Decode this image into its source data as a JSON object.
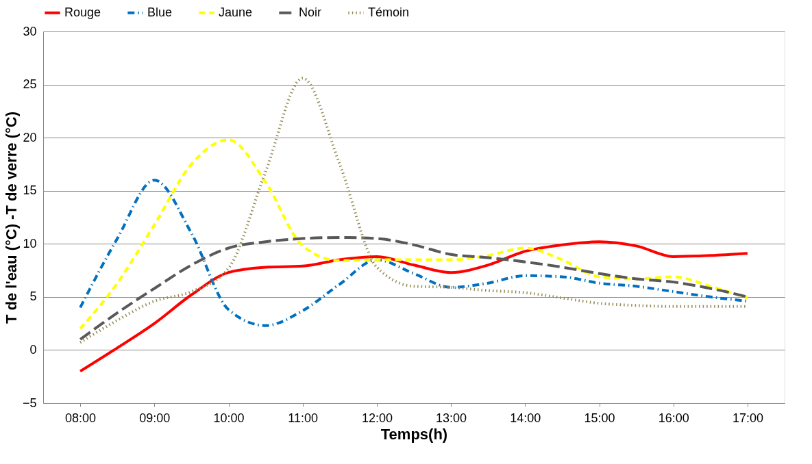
{
  "chart_data": {
    "type": "line",
    "xlabel": "Temps(h)",
    "ylabel": "T de l'eau (°C) -T de verre (°C)",
    "x": [
      8,
      8.5,
      9,
      9.5,
      10,
      10.5,
      11,
      11.5,
      12,
      12.5,
      13,
      13.5,
      14,
      14.5,
      15,
      15.5,
      16,
      16.5,
      17
    ],
    "xlim": [
      7.5,
      17.5
    ],
    "xticks": [
      {
        "value": 8,
        "label": "08:00"
      },
      {
        "value": 9,
        "label": "09:00"
      },
      {
        "value": 10,
        "label": "10:00"
      },
      {
        "value": 11,
        "label": "11:00"
      },
      {
        "value": 12,
        "label": "12:00"
      },
      {
        "value": 13,
        "label": "13:00"
      },
      {
        "value": 14,
        "label": "14:00"
      },
      {
        "value": 15,
        "label": "15:00"
      },
      {
        "value": 16,
        "label": "16:00"
      },
      {
        "value": 17,
        "label": "17:00"
      }
    ],
    "ylim": [
      -5,
      30
    ],
    "yticks": [
      -5,
      0,
      5,
      10,
      15,
      20,
      25,
      30
    ],
    "grid": "y",
    "legend": "top",
    "marker": "none",
    "series": [
      {
        "name": "Rouge",
        "color": "#ff0000",
        "line_style": "solid",
        "values": [
          -2,
          0.2,
          2.5,
          5.2,
          7.3,
          7.8,
          7.9,
          8.5,
          8.8,
          8.0,
          7.3,
          8.0,
          9.3,
          9.9,
          10.2,
          9.8,
          8.8,
          8.9,
          9.1
        ]
      },
      {
        "name": "Blue",
        "color": "#0070c0",
        "line_style": "dashdot",
        "values": [
          4.0,
          10.5,
          16.0,
          11.0,
          3.8,
          2.3,
          3.7,
          6.2,
          8.5,
          7.2,
          5.9,
          6.3,
          7.0,
          6.9,
          6.3,
          6.0,
          5.5,
          5.0,
          4.6
        ]
      },
      {
        "name": "Jaune",
        "color": "#ffff00",
        "line_style": "dashed",
        "values": [
          2.0,
          6.3,
          11.8,
          17.5,
          19.8,
          15.8,
          9.8,
          8.4,
          8.5,
          8.5,
          8.5,
          8.9,
          9.6,
          8.5,
          6.9,
          6.7,
          6.9,
          6.0,
          4.9
        ]
      },
      {
        "name": "Noir",
        "color": "#595959",
        "line_style": "longdash",
        "values": [
          1.0,
          3.5,
          5.8,
          8.0,
          9.6,
          10.2,
          10.5,
          10.6,
          10.5,
          9.9,
          9.0,
          8.7,
          8.3,
          7.8,
          7.2,
          6.7,
          6.4,
          5.8,
          5.0
        ]
      },
      {
        "name": "Témoin",
        "color": "#948a54",
        "line_style": "dotted",
        "values": [
          0.7,
          2.8,
          4.6,
          5.5,
          7.7,
          16.8,
          25.6,
          17.5,
          7.8,
          6.0,
          5.9,
          5.6,
          5.4,
          4.9,
          4.4,
          4.2,
          4.1,
          4.1,
          4.1
        ]
      }
    ]
  }
}
